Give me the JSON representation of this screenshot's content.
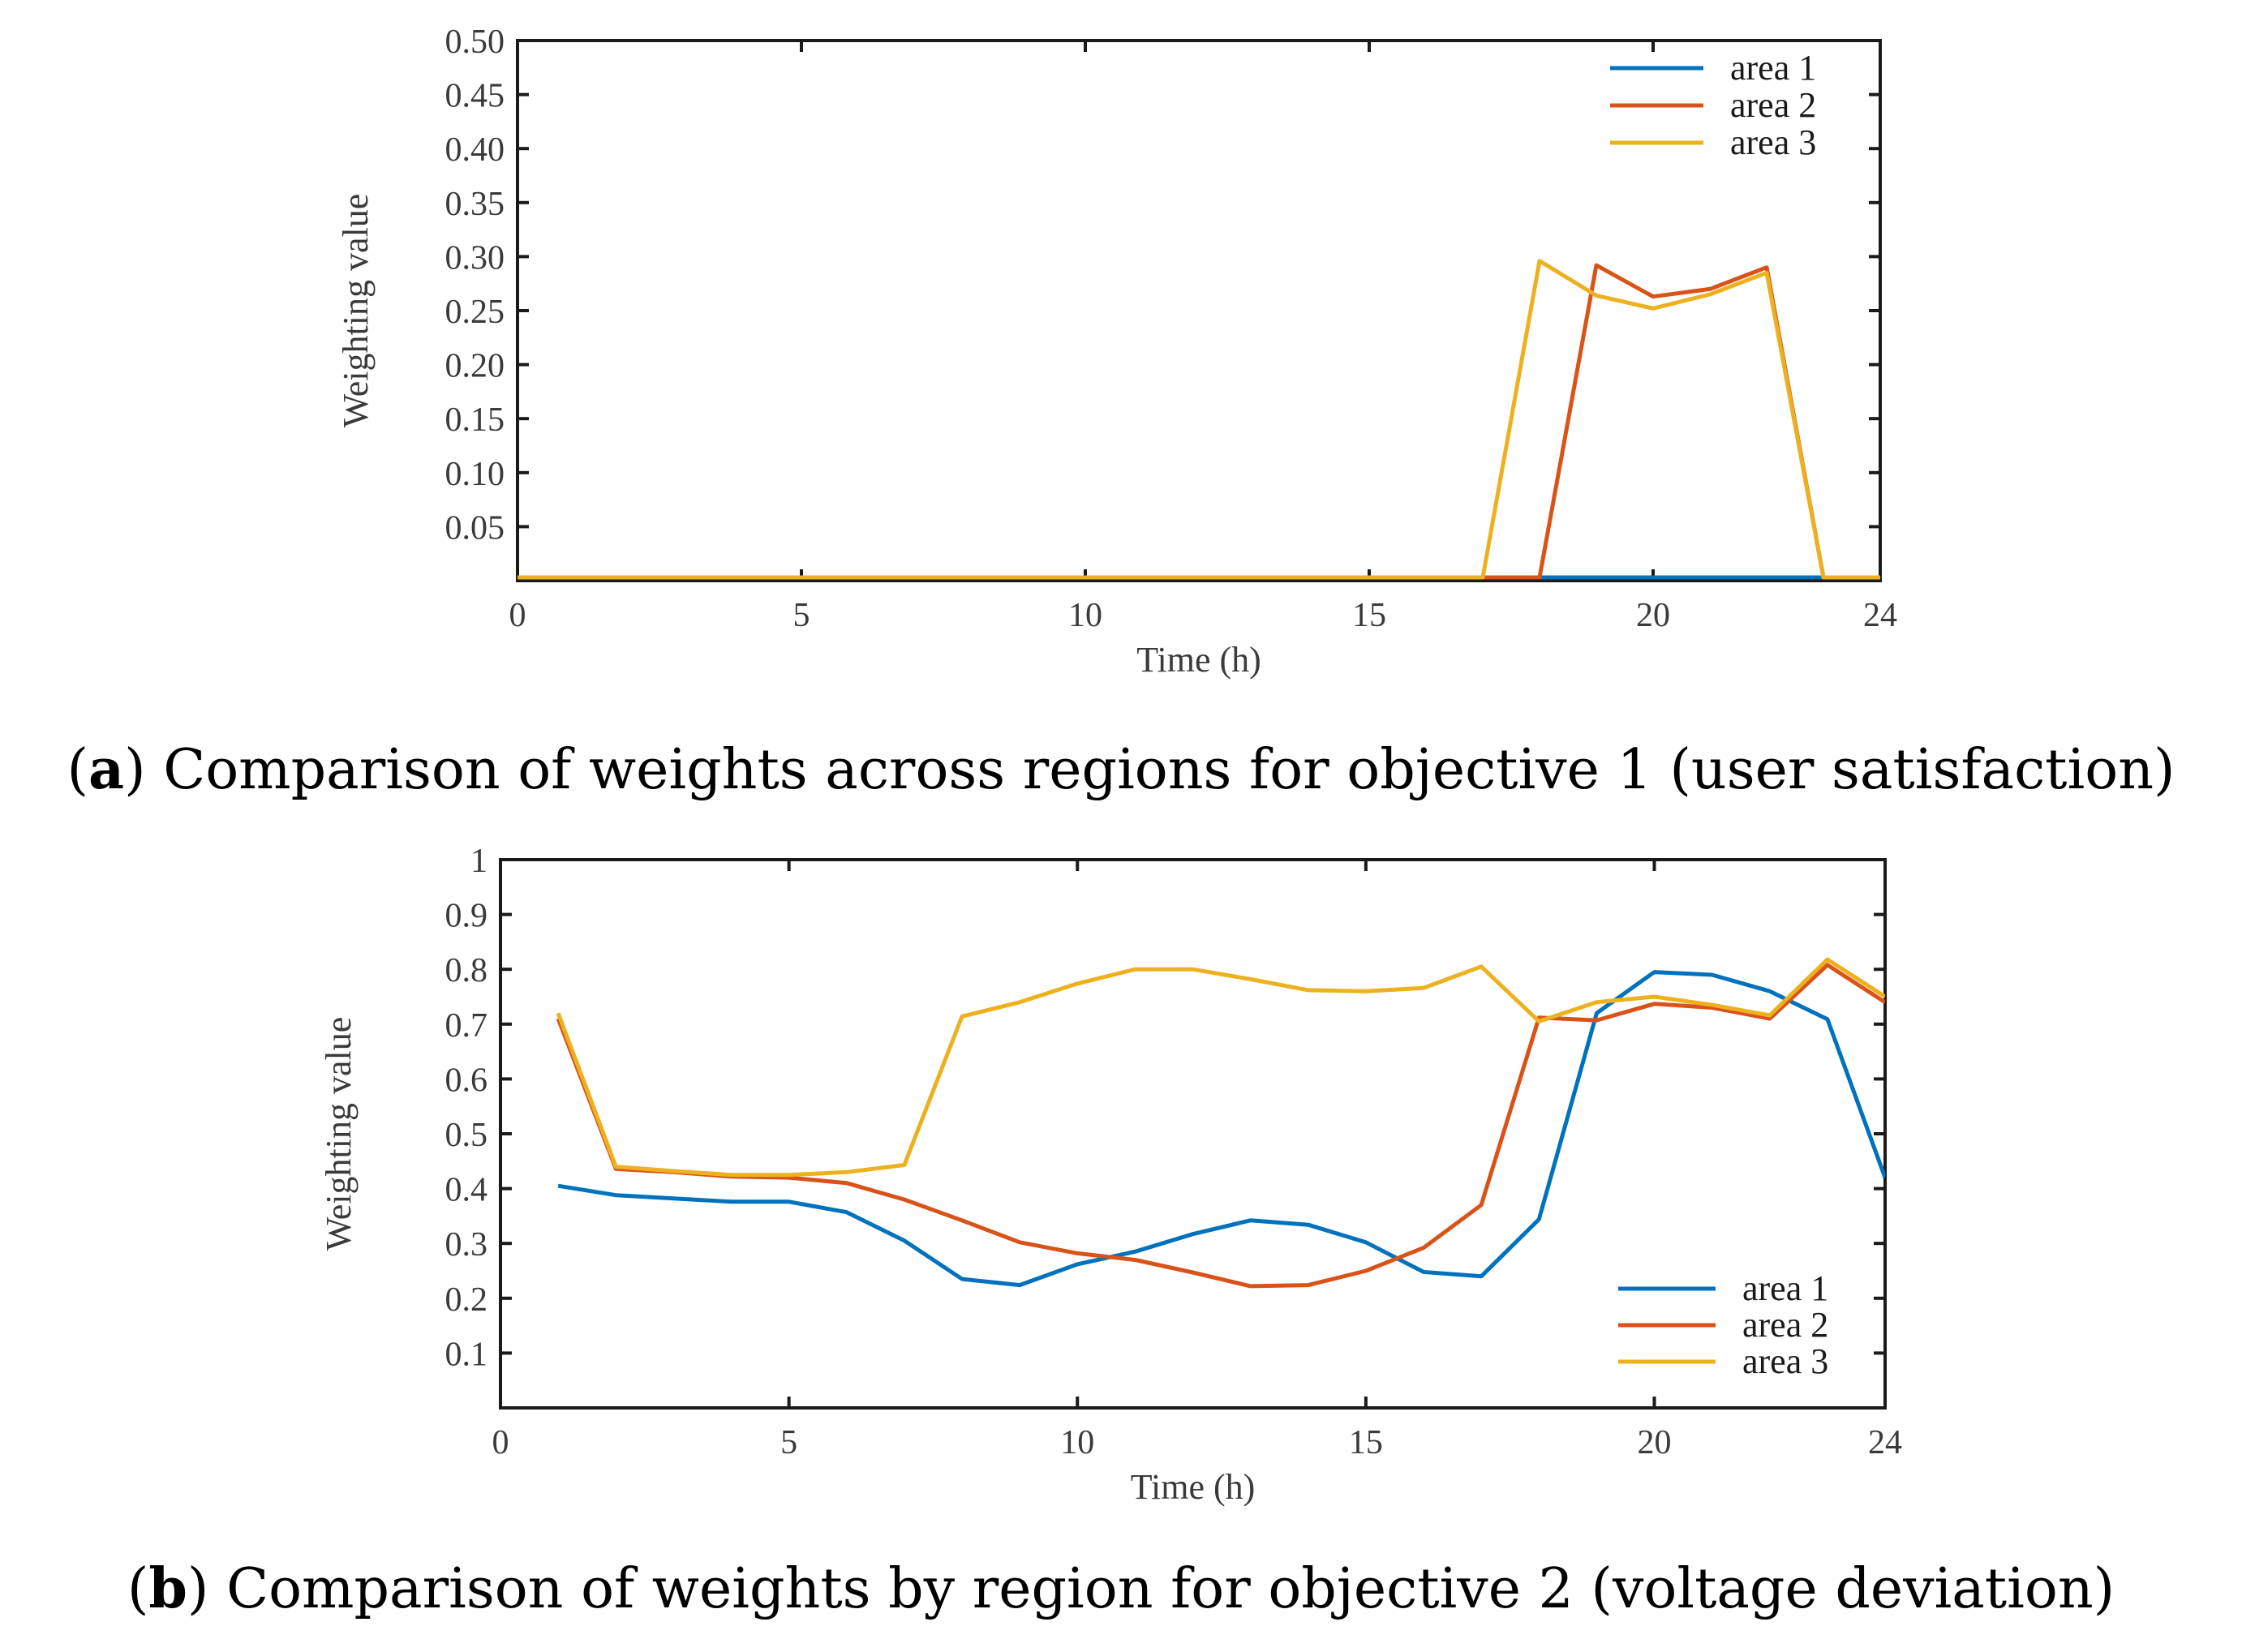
{
  "colors": {
    "area1": "#0072BD",
    "area2": "#D95319",
    "area3": "#EDB120"
  },
  "captions": [
    {
      "open": "(",
      "letter": "a",
      "text": ") Comparison of weights across regions for objective 1 (user satisfaction)"
    },
    {
      "open": "(",
      "letter": "b",
      "text": ") Comparison of weights by region for objective 2 (voltage deviation)"
    }
  ],
  "chart_data": [
    {
      "type": "line",
      "xlabel": "Time (h)",
      "ylabel": "Weighting value",
      "xlim": [
        0,
        24
      ],
      "ylim": [
        0,
        0.5
      ],
      "xticks": [
        0,
        5,
        10,
        15,
        20,
        24
      ],
      "xtick_labels": [
        "0",
        "5",
        "10",
        "15",
        "20",
        "24"
      ],
      "yticks": [
        0.05,
        0.1,
        0.15,
        0.2,
        0.25,
        0.3,
        0.35,
        0.4,
        0.45,
        0.5
      ],
      "ytick_labels": [
        "0.05",
        "0.10",
        "0.15",
        "0.20",
        "0.25",
        "0.30",
        "0.35",
        "0.40",
        "0.45",
        "0.50"
      ],
      "legend_position": "top-right",
      "series": [
        {
          "name": "area 1",
          "color_key": "area1",
          "x": [
            0,
            24
          ],
          "y": [
            0.003,
            0.003
          ]
        },
        {
          "name": "area 2",
          "color_key": "area2",
          "x": [
            0,
            18,
            19,
            20,
            21,
            22,
            23,
            24
          ],
          "y": [
            0.003,
            0.003,
            0.292,
            0.263,
            0.27,
            0.29,
            0.003,
            0.003
          ]
        },
        {
          "name": "area 3",
          "color_key": "area3",
          "x": [
            0,
            17,
            18,
            19,
            20,
            21,
            22,
            23,
            24
          ],
          "y": [
            0.003,
            0.003,
            0.296,
            0.264,
            0.252,
            0.265,
            0.285,
            0.003,
            0.003
          ]
        }
      ]
    },
    {
      "type": "line",
      "xlabel": "Time (h)",
      "ylabel": "Weighting value",
      "xlim": [
        0,
        24
      ],
      "ylim": [
        0,
        1
      ],
      "xticks": [
        0,
        5,
        10,
        15,
        20,
        24
      ],
      "xtick_labels": [
        "0",
        "5",
        "10",
        "15",
        "20",
        "24"
      ],
      "yticks": [
        0.1,
        0.2,
        0.3,
        0.4,
        0.5,
        0.6,
        0.7,
        0.8,
        0.9,
        1
      ],
      "ytick_labels": [
        "0.1",
        "0.2",
        "0.3",
        "0.4",
        "0.5",
        "0.6",
        "0.7",
        "0.8",
        "0.9",
        "1"
      ],
      "legend_position": "bottom-right",
      "series": [
        {
          "name": "area 1",
          "color_key": "area1",
          "x": [
            1,
            2,
            3,
            4,
            5,
            6,
            7,
            8,
            9,
            10,
            11,
            12,
            13,
            14,
            15,
            16,
            17,
            18,
            19,
            20,
            21,
            22,
            23,
            24
          ],
          "y": [
            0.405,
            0.388,
            0.382,
            0.376,
            0.376,
            0.357,
            0.305,
            0.235,
            0.224,
            0.262,
            0.285,
            0.317,
            0.342,
            0.334,
            0.302,
            0.248,
            0.24,
            0.344,
            0.72,
            0.795,
            0.79,
            0.76,
            0.709,
            0.42
          ]
        },
        {
          "name": "area 2",
          "color_key": "area2",
          "x": [
            1,
            2,
            3,
            4,
            5,
            6,
            7,
            8,
            9,
            10,
            11,
            12,
            13,
            14,
            15,
            16,
            17,
            18,
            19,
            20,
            21,
            22,
            23,
            24
          ],
          "y": [
            0.71,
            0.436,
            0.43,
            0.422,
            0.42,
            0.41,
            0.38,
            0.342,
            0.302,
            0.282,
            0.27,
            0.247,
            0.222,
            0.224,
            0.25,
            0.292,
            0.37,
            0.712,
            0.707,
            0.737,
            0.73,
            0.71,
            0.808,
            0.74
          ]
        },
        {
          "name": "area 3",
          "color_key": "area3",
          "x": [
            1,
            2,
            3,
            4,
            5,
            6,
            7,
            8,
            9,
            10,
            11,
            12,
            13,
            14,
            15,
            16,
            17,
            18,
            19,
            20,
            21,
            22,
            23,
            24
          ],
          "y": [
            0.72,
            0.44,
            0.432,
            0.425,
            0.425,
            0.43,
            0.443,
            0.714,
            0.74,
            0.774,
            0.8,
            0.8,
            0.782,
            0.762,
            0.76,
            0.766,
            0.805,
            0.705,
            0.74,
            0.75,
            0.735,
            0.716,
            0.818,
            0.75
          ]
        }
      ]
    }
  ]
}
